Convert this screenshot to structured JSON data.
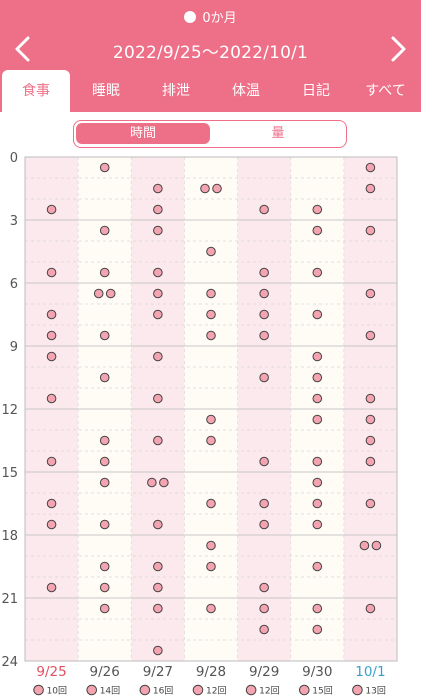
{
  "header": {
    "baby_age": "0か月",
    "title": "2022/9/25〜2022/10/1",
    "colors": {
      "accent": "#ee7088",
      "today": "#3aa0c8",
      "sunday": "#e05060"
    }
  },
  "tabs": [
    {
      "label": "食事",
      "active": true
    },
    {
      "label": "睡眠",
      "active": false
    },
    {
      "label": "排泄",
      "active": false
    },
    {
      "label": "体温",
      "active": false
    },
    {
      "label": "日記",
      "active": false
    },
    {
      "label": "すべて",
      "active": false
    }
  ],
  "segment": {
    "time_label": "時間",
    "amount_label": "量",
    "selected": "時間"
  },
  "chart_data": {
    "type": "scatter",
    "ylim": [
      0,
      24
    ],
    "y_ticks": [
      "0",
      "3",
      "6",
      "9",
      "12",
      "15",
      "18",
      "21",
      "24"
    ],
    "categories": [
      "9/25",
      "9/26",
      "9/27",
      "9/28",
      "9/29",
      "9/30",
      "10/1"
    ],
    "counts": [
      "10回",
      "14回",
      "16回",
      "12回",
      "12回",
      "15回",
      "13回"
    ],
    "feedings": [
      [
        2.5,
        5.5,
        7.5,
        8.5,
        9.5,
        11.5,
        14.5,
        16.5,
        17.5,
        20.5
      ],
      [
        0.5,
        3.5,
        5.5,
        6.5,
        6.5,
        8.5,
        10.5,
        13.5,
        14.5,
        15.5,
        17.5,
        19.5,
        20.5,
        21.5
      ],
      [
        1.5,
        2.5,
        3.5,
        5.5,
        6.5,
        7.5,
        9.5,
        11.5,
        13.5,
        15.5,
        15.5,
        17.5,
        19.5,
        20.5,
        21.5,
        23.5
      ],
      [
        1.5,
        1.5,
        4.5,
        6.5,
        7.5,
        8.5,
        12.5,
        13.5,
        16.5,
        18.5,
        19.5,
        21.5
      ],
      [
        2.5,
        5.5,
        6.5,
        7.5,
        8.5,
        10.5,
        14.5,
        16.5,
        17.5,
        20.5,
        21.5,
        22.5
      ],
      [
        2.5,
        3.5,
        5.5,
        7.5,
        9.5,
        10.5,
        11.5,
        12.5,
        14.5,
        15.5,
        16.5,
        17.5,
        19.5,
        21.5,
        22.5
      ],
      [
        0.5,
        1.5,
        3.5,
        6.5,
        8.5,
        11.5,
        12.5,
        13.5,
        14.5,
        16.5,
        18.5,
        18.5,
        21.5
      ]
    ]
  }
}
